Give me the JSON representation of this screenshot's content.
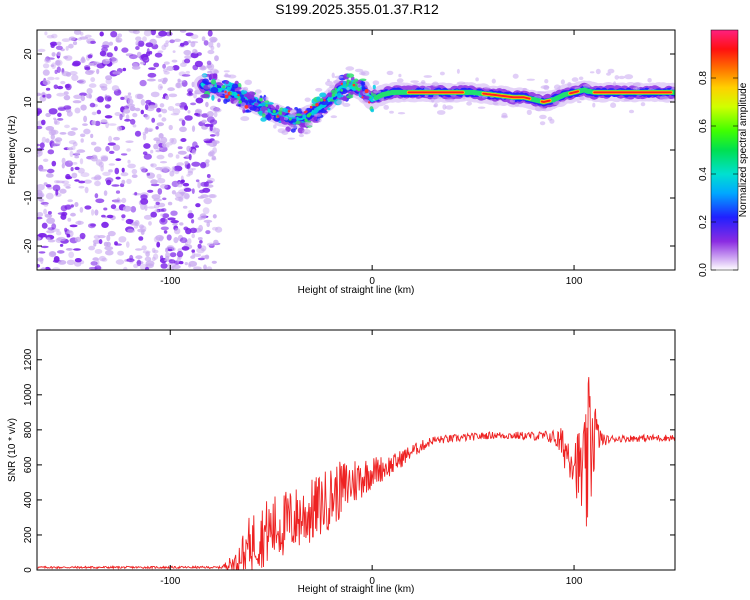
{
  "title": "S199.2025.355.01.37.R12",
  "chart_data": [
    {
      "type": "heatmap",
      "xlabel": "Height of straight line (km)",
      "ylabel": "Frequency (Hz)",
      "xlim": [
        -166,
        150
      ],
      "ylim": [
        -25,
        25
      ],
      "x_ticks": [
        -100,
        0,
        100
      ],
      "y_ticks": [
        -20,
        -10,
        0,
        10,
        20
      ],
      "x_tick_labels": [
        "-100",
        "0",
        "100"
      ],
      "y_tick_labels": [
        "-20",
        "-10",
        "0",
        "10",
        "20"
      ],
      "ridge": {
        "x": [
          -84,
          -80,
          -75,
          -70,
          -65,
          -60,
          -55,
          -50,
          -45,
          -40,
          -35,
          -30,
          -25,
          -20,
          -15,
          -10,
          -5,
          0,
          5,
          10,
          20,
          30,
          40,
          50,
          60,
          70,
          75,
          80,
          85,
          90,
          95,
          100,
          105,
          110,
          120,
          130,
          140,
          150
        ],
        "y": [
          13.5,
          13,
          12.5,
          12,
          11,
          10,
          9,
          8,
          7,
          6.5,
          6.5,
          7.5,
          9,
          11,
          13,
          13,
          12.5,
          10.5,
          11.5,
          12,
          12,
          12,
          12,
          12,
          11.5,
          11,
          11,
          10.5,
          10,
          10.5,
          11.5,
          12,
          12.5,
          12,
          12,
          12,
          12,
          12
        ]
      },
      "noise_region_x": [
        -166,
        -80
      ],
      "colorbar": {
        "label": "Normalized spectral amplitude",
        "range": [
          0,
          1
        ],
        "ticks": [
          0.0,
          0.2,
          0.4,
          0.6,
          0.8
        ],
        "tick_labels": [
          "0.0",
          "0.2",
          "0.4",
          "0.6",
          "0.8"
        ]
      }
    },
    {
      "type": "line",
      "xlabel": "Height of straight line (km)",
      "ylabel": "SNR (10 * v/v)",
      "xlim": [
        -166,
        150
      ],
      "ylim": [
        0,
        1370
      ],
      "x_ticks": [
        -100,
        0,
        100
      ],
      "y_ticks": [
        0,
        200,
        400,
        600,
        800,
        1000,
        1200
      ],
      "x_tick_labels": [
        "-100",
        "0",
        "100"
      ],
      "y_tick_labels": [
        "0",
        "200",
        "400",
        "600",
        "800",
        "1000",
        "1200"
      ],
      "series": [
        {
          "name": "SNR",
          "color": "#ee2222",
          "envelope_x": [
            -166,
            -75,
            -68,
            -60,
            -50,
            -40,
            -30,
            -20,
            -10,
            0,
            10,
            20,
            30,
            60,
            80,
            90,
            95,
            100,
            103,
            106,
            108,
            110,
            112,
            115,
            120,
            150
          ],
          "envelope_y": [
            15,
            15,
            40,
            160,
            230,
            280,
            330,
            420,
            500,
            560,
            600,
            680,
            740,
            770,
            765,
            760,
            700,
            640,
            560,
            520,
            740,
            800,
            760,
            740,
            750,
            755
          ],
          "noise_amplitude": [
            6,
            6,
            60,
            170,
            200,
            190,
            190,
            180,
            150,
            90,
            60,
            40,
            25,
            20,
            25,
            40,
            120,
            150,
            260,
            380,
            500,
            260,
            80,
            30,
            20,
            20
          ]
        }
      ]
    }
  ],
  "colors": {
    "line": "#ee2222",
    "noise_purple": "#7a1fe8",
    "noise_lavender": "#c8a8f0"
  }
}
